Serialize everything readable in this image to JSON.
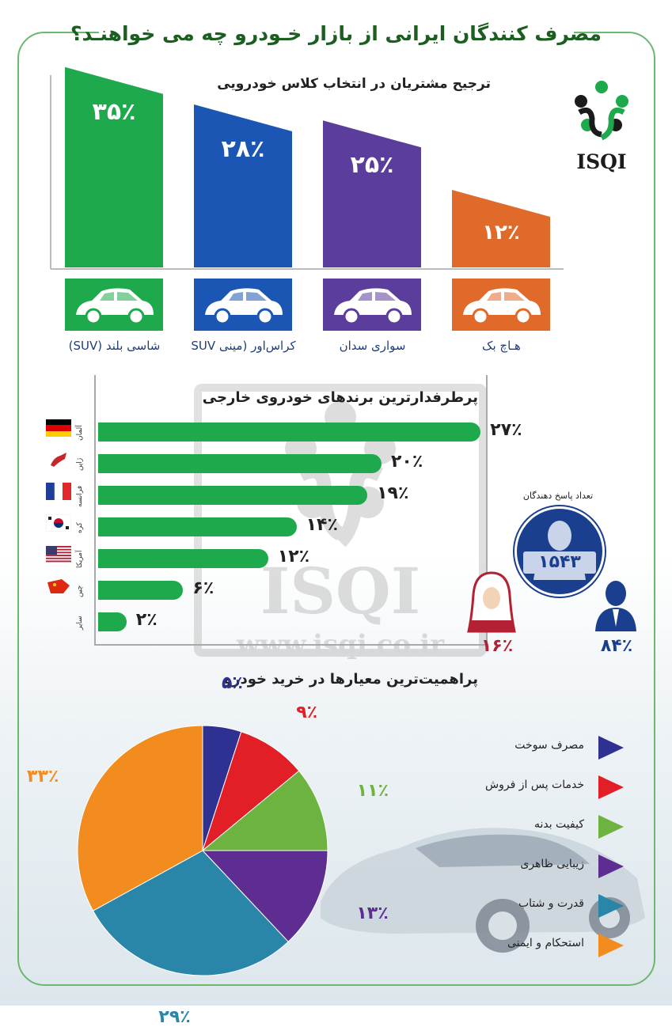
{
  "title": "مصرف کنندگان ایرانی از بازار خـودرو چه می خواهنـد؟",
  "brand": "ISQI",
  "watermark": {
    "brand": "ISQI",
    "url": "www.isqi.co.ir"
  },
  "colors": {
    "green": "#1fa94d",
    "blue": "#1b56b5",
    "purple": "#5b3d9b",
    "orange": "#e06a2a"
  },
  "chart_data": [
    {
      "type": "bar",
      "title": "ترجیح مشتریان در انتخاب کلاس خودرویی",
      "categories": [
        "شاسی بلند (SUV)",
        "کراس‌اور (مینی SUV",
        "سواری سدان",
        "هـاچ بک"
      ],
      "value_labels": [
        "۳۵٪",
        "۲۸٪",
        "۲۵٪",
        "۱۲٪"
      ],
      "values": [
        35,
        28,
        25,
        12
      ],
      "colors": [
        "#1fa94d",
        "#1b56b5",
        "#5b3d9b",
        "#e06a2a"
      ]
    },
    {
      "type": "bar",
      "orientation": "horizontal",
      "title": "پرطرفدارترین برندهای خودروی خارجی",
      "categories": [
        "آلمان",
        "ژاپن",
        "فرانسه",
        "کره",
        "آمریکا",
        "چین",
        "سایر"
      ],
      "value_labels": [
        "۲۷٪",
        "۲۰٪",
        "۱۹٪",
        "۱۴٪",
        "۱۲٪",
        "۶٪",
        "۲٪"
      ],
      "values": [
        27,
        20,
        19,
        14,
        12,
        6,
        2
      ],
      "color": "#1fa94d"
    },
    {
      "type": "pie",
      "title": "پراهمیت‌ترین معیارها در خرید خودرو",
      "categories": [
        "مصرف سوخت",
        "خدمات پس از فروش",
        "کیفیت بدنه",
        "زیبایی ظاهری",
        "قدرت و شتاب",
        "استحکام و ایمنی"
      ],
      "value_labels": [
        "۵٪",
        "۹٪",
        "۱۱٪",
        "۱۳٪",
        "۲۹٪",
        "۳۳٪"
      ],
      "values": [
        5,
        9,
        11,
        13,
        29,
        33
      ],
      "colors": [
        "#2e3192",
        "#e21e26",
        "#6cb33f",
        "#5e2d91",
        "#2986a8",
        "#f28c1e"
      ]
    }
  ],
  "respondents": {
    "label": "تعداد پاسخ دهندگان",
    "count": "۱۵۴۳",
    "female_share": "۱۶٪",
    "male_share": "۸۴٪"
  }
}
